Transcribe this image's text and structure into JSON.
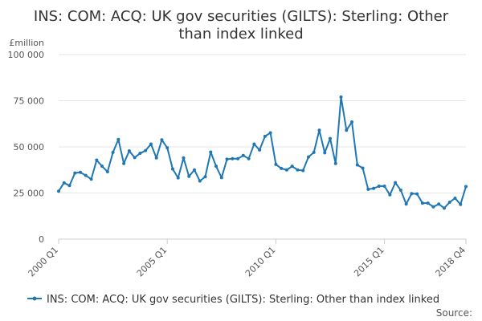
{
  "chart_data": {
    "type": "line",
    "title_lines": [
      "INS: COM: ACQ: UK gov securities (GILTS): Sterling: Other",
      "than index linked"
    ],
    "ylabel": "£million",
    "ylim": [
      0,
      100000
    ],
    "yticks": [
      0,
      25000,
      50000,
      75000,
      100000
    ],
    "ytick_labels": [
      "0",
      "25 000",
      "50 000",
      "75 000",
      "100 000"
    ],
    "xtick_labels": [
      {
        "label": "2000 Q1",
        "x": "2000 Q1"
      },
      {
        "label": "2005 Q1",
        "x": "2005 Q1"
      },
      {
        "label": "2010 Q1",
        "x": "2010 Q1"
      },
      {
        "label": "2015 Q1",
        "x": "2015 Q1"
      },
      {
        "label": "2018 Q4",
        "x": "2018 Q4"
      }
    ],
    "grid": true,
    "legend_position": "bottom",
    "source_label": "Source:",
    "color": "#1f77b4",
    "series": [
      {
        "name": "INS: COM: ACQ: UK gov securities (GILTS): Sterling: Other than index linked",
        "x": [
          "2000 Q1",
          "2000 Q2",
          "2000 Q3",
          "2000 Q4",
          "2001 Q1",
          "2001 Q2",
          "2001 Q3",
          "2001 Q4",
          "2002 Q1",
          "2002 Q2",
          "2002 Q3",
          "2002 Q4",
          "2003 Q1",
          "2003 Q2",
          "2003 Q3",
          "2003 Q4",
          "2004 Q1",
          "2004 Q2",
          "2004 Q3",
          "2004 Q4",
          "2005 Q1",
          "2005 Q2",
          "2005 Q3",
          "2005 Q4",
          "2006 Q1",
          "2006 Q2",
          "2006 Q3",
          "2006 Q4",
          "2007 Q1",
          "2007 Q2",
          "2007 Q3",
          "2007 Q4",
          "2008 Q1",
          "2008 Q2",
          "2008 Q3",
          "2008 Q4",
          "2009 Q1",
          "2009 Q2",
          "2009 Q3",
          "2009 Q4",
          "2010 Q1",
          "2010 Q2",
          "2010 Q3",
          "2010 Q4",
          "2011 Q1",
          "2011 Q2",
          "2011 Q3",
          "2011 Q4",
          "2012 Q1",
          "2012 Q2",
          "2012 Q3",
          "2012 Q4",
          "2013 Q1",
          "2013 Q2",
          "2013 Q3",
          "2013 Q4",
          "2014 Q1",
          "2014 Q2",
          "2014 Q3",
          "2014 Q4",
          "2015 Q1",
          "2015 Q2",
          "2015 Q3",
          "2015 Q4",
          "2016 Q1",
          "2016 Q2",
          "2016 Q3",
          "2016 Q4",
          "2017 Q1",
          "2017 Q2",
          "2017 Q3",
          "2017 Q4",
          "2018 Q1",
          "2018 Q2",
          "2018 Q3",
          "2018 Q4"
        ],
        "values": [
          26000,
          30500,
          29000,
          35800,
          36200,
          34500,
          32500,
          42800,
          39500,
          36500,
          47000,
          54000,
          41000,
          47800,
          44200,
          46500,
          48000,
          51500,
          44000,
          53800,
          49500,
          38000,
          33200,
          44000,
          34000,
          37500,
          31500,
          33800,
          47200,
          39500,
          33300,
          43300,
          43600,
          43600,
          45300,
          43600,
          51500,
          48300,
          55700,
          57600,
          40500,
          38300,
          37500,
          39500,
          37500,
          37200,
          44500,
          47000,
          59000,
          46800,
          54500,
          41000,
          77000,
          59000,
          63500,
          40200,
          38500,
          27000,
          27500,
          28700,
          28700,
          24000,
          30600,
          26500,
          19000,
          24700,
          24500,
          19500,
          19500,
          17500,
          19000,
          16800,
          20000,
          22200,
          18800,
          28500
        ]
      }
    ]
  }
}
